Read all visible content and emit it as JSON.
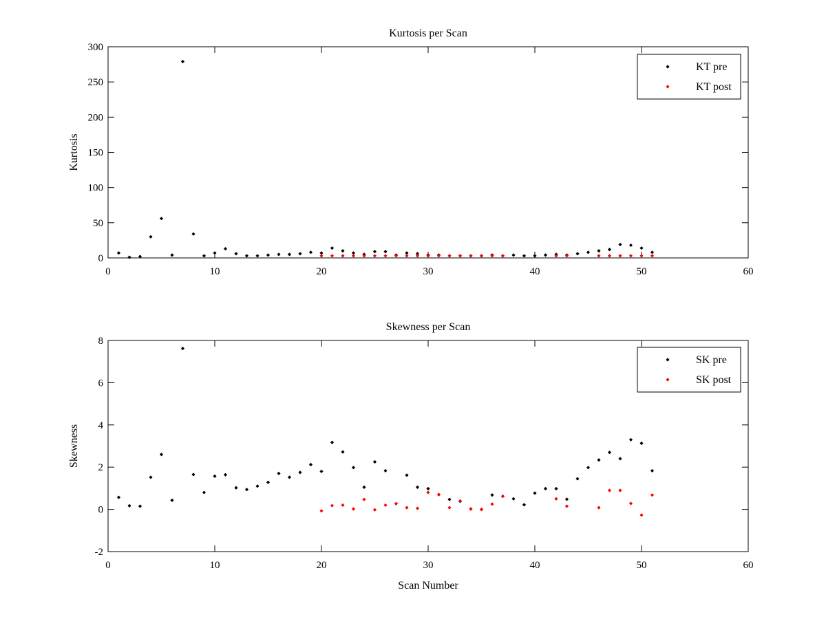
{
  "chart_data": [
    {
      "type": "scatter",
      "title": "Kurtosis per Scan",
      "xlabel": "",
      "ylabel": "Kurtosis",
      "xlim": [
        0,
        60
      ],
      "ylim": [
        0,
        300
      ],
      "xticks": [
        0,
        10,
        20,
        30,
        40,
        50,
        60
      ],
      "yticks": [
        0,
        50,
        100,
        150,
        200,
        250,
        300
      ],
      "grid": false,
      "legend_position": "top-right",
      "series": [
        {
          "name": "KT pre",
          "color": "#000000",
          "marker": "diamond",
          "x": [
            1,
            2,
            3,
            4,
            5,
            6,
            7,
            8,
            9,
            10,
            11,
            12,
            13,
            14,
            15,
            16,
            17,
            18,
            19,
            20,
            21,
            22,
            23,
            24,
            25,
            26,
            27,
            28,
            29,
            30,
            31,
            32,
            33,
            34,
            35,
            36,
            37,
            38,
            39,
            40,
            41,
            42,
            43,
            44,
            45,
            46,
            47,
            48,
            49,
            50,
            51
          ],
          "y": [
            7,
            1,
            2,
            30,
            56,
            4,
            279,
            34,
            3,
            7,
            13,
            6,
            3,
            3,
            4,
            5,
            5,
            6,
            8,
            7,
            14,
            10,
            7,
            5,
            9,
            9,
            4,
            7,
            6,
            4,
            4,
            3,
            3,
            3,
            3,
            4,
            3,
            4,
            3,
            3,
            4,
            5,
            4,
            6,
            8,
            10,
            12,
            19,
            18,
            14,
            8
          ]
        },
        {
          "name": "KT post",
          "color": "#ff0000",
          "marker": "diamond",
          "x": [
            20,
            21,
            22,
            23,
            24,
            25,
            26,
            27,
            28,
            29,
            30,
            31,
            32,
            33,
            34,
            35,
            36,
            37,
            42,
            43,
            46,
            47,
            48,
            49,
            50,
            51
          ],
          "y": [
            3,
            3,
            3,
            3,
            3,
            3,
            3,
            3,
            3,
            3,
            3,
            3,
            3,
            3,
            3,
            3,
            3,
            3,
            3,
            3,
            3,
            3,
            3,
            3,
            3,
            3
          ]
        }
      ]
    },
    {
      "type": "scatter",
      "title": "Skewness per Scan",
      "xlabel": "Scan Number",
      "ylabel": "Skewness",
      "xlim": [
        0,
        60
      ],
      "ylim": [
        -2,
        8
      ],
      "xticks": [
        0,
        10,
        20,
        30,
        40,
        50,
        60
      ],
      "yticks": [
        -2,
        0,
        2,
        4,
        6,
        8
      ],
      "grid": false,
      "legend_position": "top-right",
      "series": [
        {
          "name": "SK pre",
          "color": "#000000",
          "marker": "diamond",
          "x": [
            1,
            2,
            3,
            4,
            5,
            6,
            7,
            8,
            9,
            10,
            11,
            12,
            13,
            14,
            15,
            16,
            17,
            18,
            19,
            20,
            21,
            22,
            23,
            24,
            25,
            26,
            27,
            28,
            29,
            30,
            31,
            32,
            33,
            34,
            35,
            36,
            37,
            38,
            39,
            40,
            41,
            42,
            43,
            44,
            45,
            46,
            47,
            48,
            49,
            50,
            51
          ],
          "y": [
            0.57,
            0.17,
            0.15,
            1.52,
            2.6,
            0.43,
            7.62,
            1.65,
            0.8,
            1.57,
            1.64,
            1.02,
            0.94,
            1.1,
            1.28,
            1.7,
            1.52,
            1.75,
            2.12,
            1.8,
            3.17,
            2.72,
            1.98,
            1.05,
            2.25,
            1.83,
            0.27,
            1.62,
            1.05,
            0.98,
            0.7,
            0.47,
            0.38,
            0.02,
            0,
            0.68,
            0.62,
            0.5,
            0.22,
            0.77,
            0.98,
            0.98,
            0.48,
            1.45,
            1.98,
            2.34,
            2.7,
            2.4,
            3.3,
            3.13,
            1.83
          ]
        },
        {
          "name": "SK post",
          "color": "#ff0000",
          "marker": "diamond",
          "x": [
            20,
            21,
            22,
            23,
            24,
            25,
            26,
            27,
            28,
            29,
            30,
            31,
            32,
            33,
            34,
            35,
            36,
            37,
            42,
            43,
            46,
            47,
            48,
            49,
            50,
            51
          ],
          "y": [
            -0.07,
            0.18,
            0.2,
            0.02,
            0.47,
            -0.02,
            0.2,
            0.27,
            0.08,
            0.05,
            0.8,
            0.7,
            0.08,
            0.4,
            0.02,
            0,
            0.25,
            0.62,
            0.5,
            0.15,
            0.08,
            0.9,
            0.9,
            0.28,
            -0.27,
            0.68
          ]
        }
      ]
    }
  ]
}
